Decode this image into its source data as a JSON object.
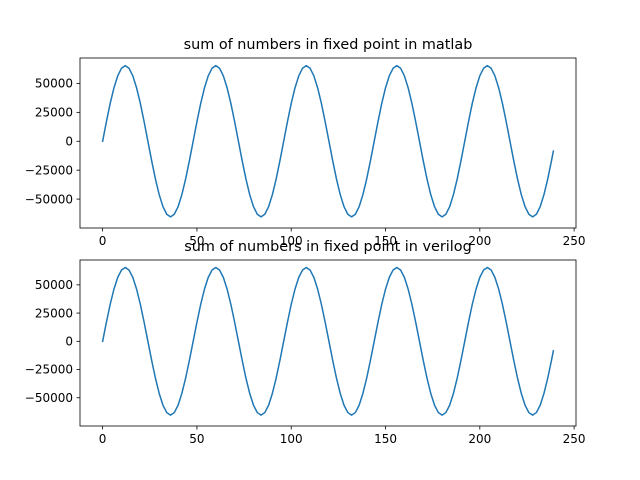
{
  "chart_data": [
    {
      "type": "line",
      "title": "sum of numbers in fixed point in matlab",
      "xlabel": "",
      "ylabel": "",
      "xlim": [
        -12,
        251
      ],
      "ylim": [
        -75000,
        72000
      ],
      "x_ticks": [
        0,
        50,
        100,
        150,
        200,
        250
      ],
      "y_ticks": [
        -50000,
        -25000,
        0,
        25000,
        50000
      ],
      "x_tick_labels": [
        "0",
        "50",
        "100",
        "150",
        "200",
        "250"
      ],
      "y_tick_labels": [
        "−50000",
        "−25000",
        "0",
        "25000",
        "50000"
      ],
      "grid": false,
      "series": [
        {
          "color": "#1f77b4",
          "x": [
            0,
            2,
            4,
            6,
            8,
            10,
            12,
            14,
            16,
            18,
            20,
            22,
            24,
            26,
            28,
            30,
            32,
            34,
            36,
            38,
            40,
            42,
            44,
            46,
            48,
            50,
            52,
            54,
            56,
            58,
            60,
            62,
            64,
            66,
            68,
            70,
            72,
            74,
            76,
            78,
            80,
            82,
            84,
            86,
            88,
            90,
            92,
            94,
            96,
            98,
            100,
            102,
            104,
            106,
            108,
            110,
            112,
            114,
            116,
            118,
            120,
            122,
            124,
            126,
            128,
            130,
            132,
            134,
            136,
            138,
            140,
            142,
            144,
            146,
            148,
            150,
            152,
            154,
            156,
            158,
            160,
            162,
            164,
            166,
            168,
            170,
            172,
            174,
            176,
            178,
            180,
            182,
            184,
            186,
            188,
            190,
            192,
            194,
            196,
            198,
            200,
            202,
            204,
            206,
            208,
            210,
            212,
            214,
            216,
            218,
            220,
            222,
            224,
            226,
            228,
            230,
            232,
            234,
            236,
            238,
            239
          ],
          "y": [
            0,
            16900,
            32700,
            46200,
            56600,
            63100,
            65400,
            63100,
            56600,
            46200,
            32700,
            16900,
            0,
            -16900,
            -32700,
            -46200,
            -56600,
            -63100,
            -65400,
            -63100,
            -56600,
            -46200,
            -32700,
            -16900,
            0,
            16900,
            32700,
            46200,
            56600,
            63100,
            65400,
            63100,
            56600,
            46200,
            32700,
            16900,
            0,
            -16900,
            -32700,
            -46200,
            -56600,
            -63100,
            -65400,
            -63100,
            -56600,
            -46200,
            -32700,
            -16900,
            0,
            16900,
            32700,
            46200,
            56600,
            63100,
            65400,
            63100,
            56600,
            46200,
            32700,
            16900,
            0,
            -16900,
            -32700,
            -46200,
            -56600,
            -63100,
            -65400,
            -63100,
            -56600,
            -46200,
            -32700,
            -16900,
            0,
            16900,
            32700,
            46200,
            56600,
            63100,
            65400,
            63100,
            56600,
            46200,
            32700,
            16900,
            0,
            -16900,
            -32700,
            -46200,
            -56600,
            -63100,
            -65400,
            -63100,
            -56600,
            -46200,
            -32700,
            -16900,
            0,
            16900,
            32700,
            46200,
            56600,
            63100,
            65400,
            63100,
            56600,
            46200,
            32700,
            16900,
            0,
            -16900,
            -32700,
            -46200,
            -56600,
            -63100,
            -65400,
            -63100,
            -56600,
            -46200,
            -32700,
            -16900,
            -8500
          ]
        }
      ]
    },
    {
      "type": "line",
      "title": "sum of numbers in fixed point in verilog",
      "xlabel": "",
      "ylabel": "",
      "xlim": [
        -12,
        251
      ],
      "ylim": [
        -75000,
        72000
      ],
      "x_ticks": [
        0,
        50,
        100,
        150,
        200,
        250
      ],
      "y_ticks": [
        -50000,
        -25000,
        0,
        25000,
        50000
      ],
      "x_tick_labels": [
        "0",
        "50",
        "100",
        "150",
        "200",
        "250"
      ],
      "y_tick_labels": [
        "−50000",
        "−25000",
        "0",
        "25000",
        "50000"
      ],
      "grid": false,
      "series": [
        {
          "color": "#1f77b4",
          "x": [
            0,
            2,
            4,
            6,
            8,
            10,
            12,
            14,
            16,
            18,
            20,
            22,
            24,
            26,
            28,
            30,
            32,
            34,
            36,
            38,
            40,
            42,
            44,
            46,
            48,
            50,
            52,
            54,
            56,
            58,
            60,
            62,
            64,
            66,
            68,
            70,
            72,
            74,
            76,
            78,
            80,
            82,
            84,
            86,
            88,
            90,
            92,
            94,
            96,
            98,
            100,
            102,
            104,
            106,
            108,
            110,
            112,
            114,
            116,
            118,
            120,
            122,
            124,
            126,
            128,
            130,
            132,
            134,
            136,
            138,
            140,
            142,
            144,
            146,
            148,
            150,
            152,
            154,
            156,
            158,
            160,
            162,
            164,
            166,
            168,
            170,
            172,
            174,
            176,
            178,
            180,
            182,
            184,
            186,
            188,
            190,
            192,
            194,
            196,
            198,
            200,
            202,
            204,
            206,
            208,
            210,
            212,
            214,
            216,
            218,
            220,
            222,
            224,
            226,
            228,
            230,
            232,
            234,
            236,
            238,
            239
          ],
          "y": [
            0,
            16900,
            32700,
            46200,
            56600,
            63100,
            65400,
            63100,
            56600,
            46200,
            32700,
            16900,
            0,
            -16900,
            -32700,
            -46200,
            -56600,
            -63100,
            -65400,
            -63100,
            -56600,
            -46200,
            -32700,
            -16900,
            0,
            16900,
            32700,
            46200,
            56600,
            63100,
            65400,
            63100,
            56600,
            46200,
            32700,
            16900,
            0,
            -16900,
            -32700,
            -46200,
            -56600,
            -63100,
            -65400,
            -63100,
            -56600,
            -46200,
            -32700,
            -16900,
            0,
            16900,
            32700,
            46200,
            56600,
            63100,
            65400,
            63100,
            56600,
            46200,
            32700,
            16900,
            0,
            -16900,
            -32700,
            -46200,
            -56600,
            -63100,
            -65400,
            -63100,
            -56600,
            -46200,
            -32700,
            -16900,
            0,
            16900,
            32700,
            46200,
            56600,
            63100,
            65400,
            63100,
            56600,
            46200,
            32700,
            16900,
            0,
            -16900,
            -32700,
            -46200,
            -56600,
            -63100,
            -65400,
            -63100,
            -56600,
            -46200,
            -32700,
            -16900,
            0,
            16900,
            32700,
            46200,
            56600,
            63100,
            65400,
            63100,
            56600,
            46200,
            32700,
            16900,
            0,
            -16900,
            -32700,
            -46200,
            -56600,
            -63100,
            -65400,
            -63100,
            -56600,
            -46200,
            -32700,
            -16900,
            -8500
          ]
        }
      ]
    }
  ]
}
